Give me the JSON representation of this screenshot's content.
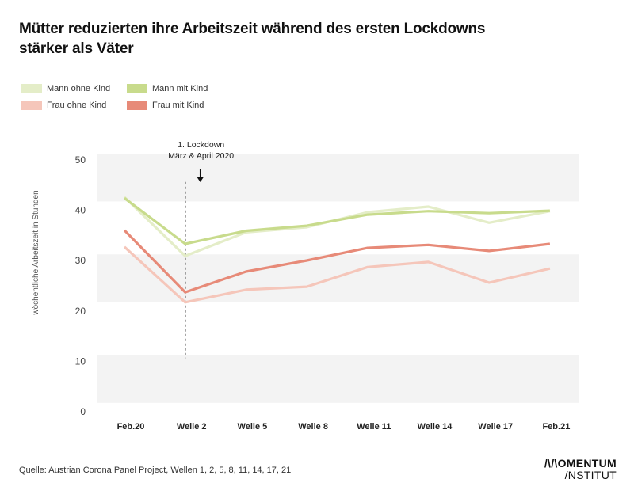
{
  "title": "Mütter reduzierten ihre Arbeitszeit während des ersten Lockdowns stärker als Väter",
  "legend": [
    {
      "label": "Mann ohne Kind",
      "color": "#e4edc8"
    },
    {
      "label": "Mann mit Kind",
      "color": "#c8db8c"
    },
    {
      "label": "Frau ohne Kind",
      "color": "#f5c6ba"
    },
    {
      "label": "Frau mit Kind",
      "color": "#e78a78"
    }
  ],
  "annotation": {
    "line1": "1. Lockdown",
    "line2": "März & April 2020",
    "arrow": "arrow-down-icon"
  },
  "footer": {
    "source": "Quelle: Austrian Corona Panel Project, Wellen 1, 2, 5, 8, 11, 14, 17, 21",
    "logo_line1": "/\\/\\OMENTUM",
    "logo_line2": "/NSTITUT"
  },
  "chart_data": {
    "type": "line",
    "title": "Mütter reduzierten ihre Arbeitszeit während des ersten Lockdowns stärker als Väter",
    "xlabel": "",
    "ylabel": "wöchentliche Arbeitszeit in Stunden",
    "categories": [
      "Feb.20",
      "Welle 2",
      "Welle 5",
      "Welle 8",
      "Welle 11",
      "Welle 14",
      "Welle 17",
      "Feb.21"
    ],
    "yticks": [
      0,
      10,
      20,
      30,
      40,
      50
    ],
    "ylim": [
      0,
      50
    ],
    "grid": "alternating horizontal bands",
    "legend_position": "top-left",
    "annotation": {
      "category": "Welle 2",
      "text": "1. Lockdown März & April 2020",
      "y_from": 10,
      "y_to": 45
    },
    "series": [
      {
        "name": "Mann ohne Kind",
        "color": "#e4edc8",
        "values": [
          42.0,
          30.3,
          35.0,
          36.0,
          39.0,
          40.1,
          36.9,
          39.2
        ]
      },
      {
        "name": "Mann mit Kind",
        "color": "#c8db8c",
        "values": [
          41.8,
          32.7,
          35.3,
          36.3,
          38.5,
          39.2,
          38.8,
          39.3
        ]
      },
      {
        "name": "Frau ohne Kind",
        "color": "#f5c6ba",
        "values": [
          32.1,
          21.1,
          23.6,
          24.2,
          28.1,
          29.1,
          25.0,
          27.8
        ]
      },
      {
        "name": "Frau mit Kind",
        "color": "#e78a78",
        "values": [
          35.4,
          23.1,
          27.2,
          29.4,
          31.9,
          32.5,
          31.3,
          32.7
        ]
      }
    ]
  }
}
